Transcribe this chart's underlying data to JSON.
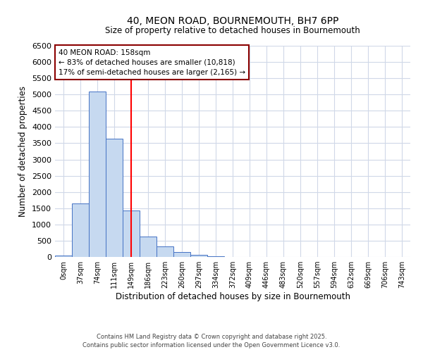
{
  "title1": "40, MEON ROAD, BOURNEMOUTH, BH7 6PP",
  "title2": "Size of property relative to detached houses in Bournemouth",
  "xlabel": "Distribution of detached houses by size in Bournemouth",
  "ylabel": "Number of detached properties",
  "bar_labels": [
    "0sqm",
    "37sqm",
    "74sqm",
    "111sqm",
    "149sqm",
    "186sqm",
    "223sqm",
    "260sqm",
    "297sqm",
    "334sqm",
    "372sqm",
    "409sqm",
    "446sqm",
    "483sqm",
    "520sqm",
    "557sqm",
    "594sqm",
    "632sqm",
    "669sqm",
    "706sqm",
    "743sqm"
  ],
  "bar_values": [
    50,
    1650,
    5100,
    3650,
    1430,
    620,
    320,
    150,
    55,
    20,
    5,
    0,
    0,
    0,
    0,
    0,
    0,
    0,
    0,
    0,
    0
  ],
  "bar_color": "#c6d9f0",
  "bar_edge_color": "#4472c4",
  "red_line_x": 4,
  "ylim": [
    0,
    6500
  ],
  "yticks": [
    0,
    500,
    1000,
    1500,
    2000,
    2500,
    3000,
    3500,
    4000,
    4500,
    5000,
    5500,
    6000,
    6500
  ],
  "annotation_title": "40 MEON ROAD: 158sqm",
  "annotation_line1": "← 83% of detached houses are smaller (10,818)",
  "annotation_line2": "17% of semi-detached houses are larger (2,165) →",
  "footer1": "Contains HM Land Registry data © Crown copyright and database right 2025.",
  "footer2": "Contains public sector information licensed under the Open Government Licence v3.0.",
  "bg_color": "#ffffff",
  "grid_color": "#d0d8e8"
}
